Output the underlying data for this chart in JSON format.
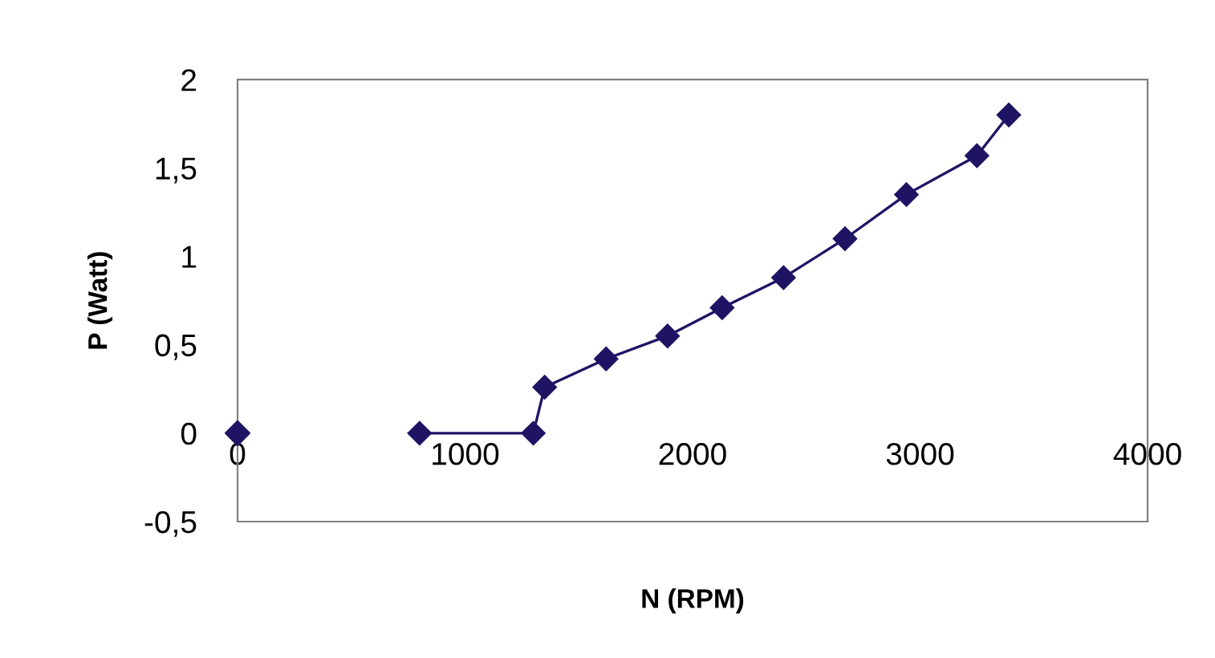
{
  "chart_data": {
    "type": "line",
    "xlabel": "N (RPM)",
    "ylabel": "P (Watt)",
    "series": [
      {
        "type": "scatter",
        "color": "#1f1464",
        "x": [
          0
        ],
        "values": [
          0
        ]
      },
      {
        "color": "#1f1464",
        "x": [
          800,
          1300,
          1350,
          1620,
          1890,
          2130,
          2400,
          2670,
          2940,
          3250,
          3390
        ],
        "values": [
          0,
          0,
          0.26,
          0.42,
          0.55,
          0.71,
          0.88,
          1.1,
          1.35,
          1.57,
          1.8
        ]
      }
    ],
    "marker": "diamond",
    "line_style": "solid",
    "grid": false,
    "xlim": [
      0,
      4000
    ],
    "xticks": [
      0,
      1000,
      2000,
      3000,
      4000
    ],
    "ylim": [
      -0.5,
      2
    ],
    "yticks": [
      {
        "value": -0.5,
        "label": "-0,5"
      },
      0,
      {
        "value": 0.5,
        "label": "0,5"
      },
      1,
      {
        "value": 1.5,
        "label": "1,5"
      },
      2
    ]
  }
}
